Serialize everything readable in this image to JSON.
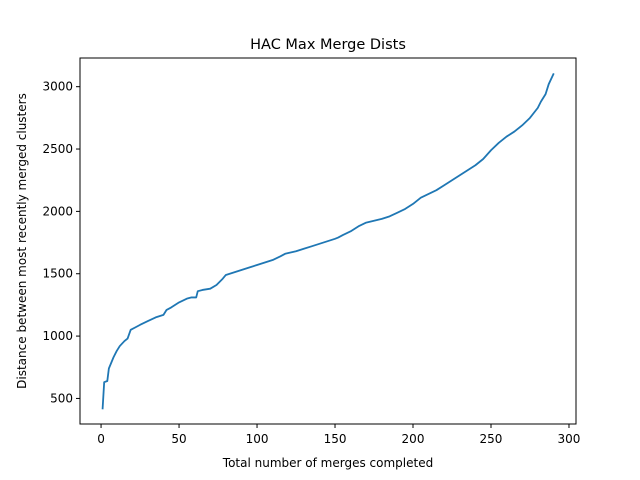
{
  "chart_data": {
    "type": "line",
    "title": "HAC Max Merge Dists",
    "xlabel": "Total number of merges completed",
    "ylabel": "Distance between most recently merged clusters",
    "xlim": [
      -13.5,
      304.5
    ],
    "ylim": [
      295,
      3230
    ],
    "xticks": [
      0,
      50,
      100,
      150,
      200,
      250,
      300
    ],
    "yticks": [
      500,
      1000,
      1500,
      2000,
      2500,
      3000
    ],
    "grid": false,
    "legend": "none",
    "colors": {
      "line": "#1f77b4"
    },
    "series": [
      {
        "x": [
          1,
          2,
          4,
          5,
          7,
          8,
          10,
          12,
          15,
          17,
          19,
          22,
          25,
          30,
          35,
          40,
          42,
          45,
          50,
          55,
          58,
          61,
          62,
          65,
          70,
          74,
          78,
          80,
          85,
          90,
          95,
          100,
          105,
          110,
          115,
          118,
          125,
          130,
          135,
          140,
          145,
          150,
          152,
          155,
          160,
          165,
          170,
          180,
          185,
          190,
          195,
          200,
          205,
          210,
          215,
          220,
          225,
          230,
          235,
          240,
          245,
          250,
          255,
          260,
          265,
          270,
          275,
          280,
          282,
          285,
          287,
          290
        ],
        "values": [
          420,
          630,
          640,
          740,
          800,
          830,
          880,
          920,
          960,
          980,
          1050,
          1070,
          1090,
          1120,
          1150,
          1170,
          1210,
          1230,
          1270,
          1300,
          1310,
          1310,
          1360,
          1370,
          1380,
          1410,
          1460,
          1490,
          1510,
          1530,
          1550,
          1570,
          1590,
          1610,
          1640,
          1660,
          1680,
          1700,
          1720,
          1740,
          1760,
          1780,
          1790,
          1810,
          1840,
          1880,
          1910,
          1940,
          1960,
          1990,
          2020,
          2060,
          2110,
          2140,
          2170,
          2210,
          2250,
          2290,
          2330,
          2370,
          2420,
          2490,
          2550,
          2600,
          2640,
          2690,
          2750,
          2830,
          2880,
          2940,
          3020,
          3100
        ]
      }
    ]
  }
}
